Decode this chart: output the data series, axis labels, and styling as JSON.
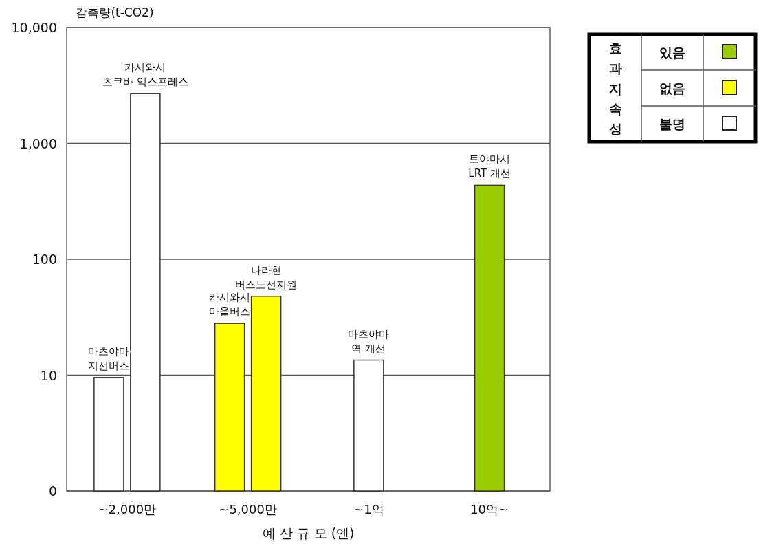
{
  "chart_data": {
    "type": "bar",
    "xlabel": "예 산 규 모 (엔)",
    "ylabel": "감축량(t-CO2)",
    "legend_title": "효과지속성",
    "log": "y",
    "grid": "y",
    "legend": "top right",
    "categories": [
      "~2,000만",
      "~5,000만",
      "~1억",
      "10억~"
    ],
    "ylim": [
      0,
      10000
    ],
    "yticks": [
      0,
      10,
      100,
      {
        "value": 1000,
        "label": "1,000"
      },
      {
        "value": 10000,
        "label": "10,000"
      }
    ],
    "series": [
      {
        "name": "있음",
        "color": "#99cc00",
        "values": [
          null,
          null,
          null,
          435
        ]
      },
      {
        "name": "없음",
        "color": "#ffff00",
        "values": [
          null,
          28,
          null,
          null
        ]
      },
      {
        "name": "불명",
        "color": "#ffffff",
        "values": [
          9.8,
          null,
          13.5,
          null
        ]
      },
      {
        "colors": [
          "#ffffff",
          "#ffff00",
          null,
          null
        ],
        "values": [
          2700,
          48,
          null,
          null
        ]
      }
    ],
    "annotations": [
      "마츠야마\n지선버스",
      "카시와시\n츠쿠바 익스프레스",
      "카시와시\n마을버스",
      "나라현\n버스노선지원",
      "마츠야마\n역 개선",
      "토야마시\nLRT 개선"
    ]
  }
}
